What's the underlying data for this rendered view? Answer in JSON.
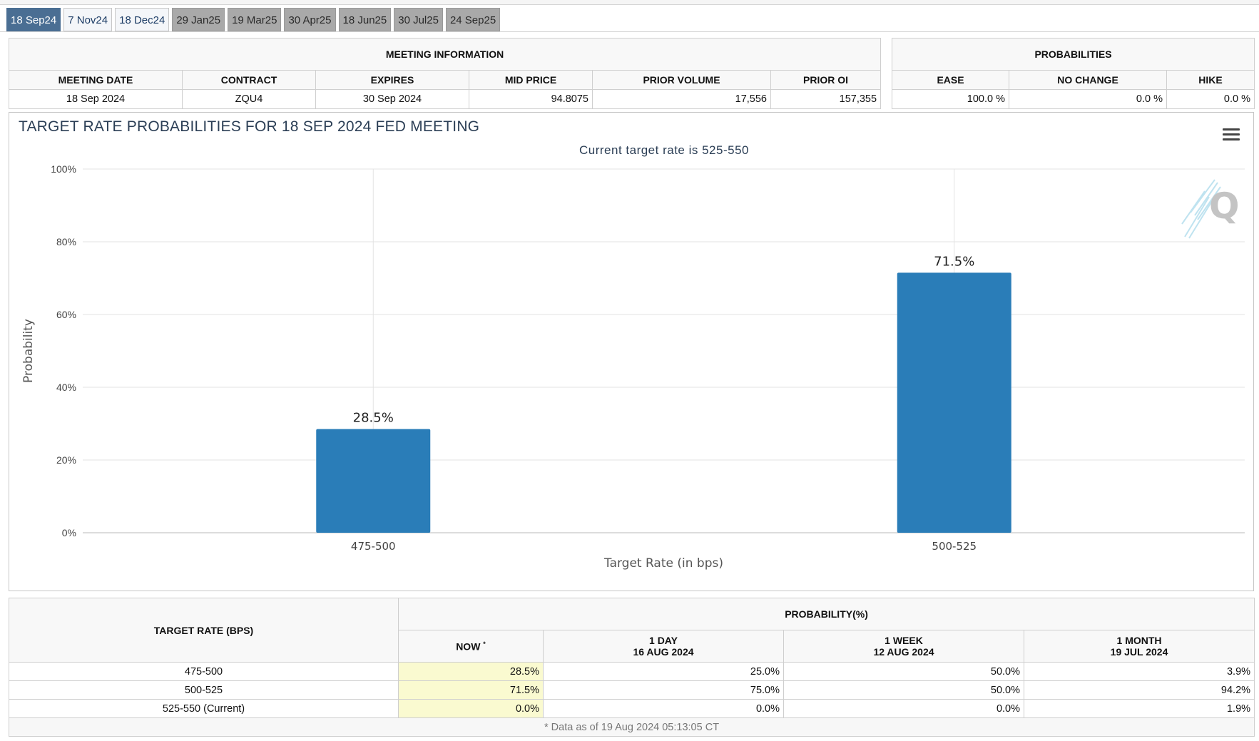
{
  "tabs": [
    {
      "label": "18 Sep24",
      "state": "active"
    },
    {
      "label": "7 Nov24",
      "state": "light"
    },
    {
      "label": "18 Dec24",
      "state": "light"
    },
    {
      "label": "29 Jan25",
      "state": "grey"
    },
    {
      "label": "19 Mar25",
      "state": "grey"
    },
    {
      "label": "30 Apr25",
      "state": "grey"
    },
    {
      "label": "18 Jun25",
      "state": "grey"
    },
    {
      "label": "30 Jul25",
      "state": "grey"
    },
    {
      "label": "24 Sep25",
      "state": "grey"
    }
  ],
  "meeting_info": {
    "title": "MEETING INFORMATION",
    "headers": [
      "MEETING DATE",
      "CONTRACT",
      "EXPIRES",
      "MID PRICE",
      "PRIOR VOLUME",
      "PRIOR OI"
    ],
    "values": [
      "18 Sep 2024",
      "ZQU4",
      "30 Sep 2024",
      "94.8075",
      "17,556",
      "157,355"
    ]
  },
  "probabilities": {
    "title": "PROBABILITIES",
    "headers": [
      "EASE",
      "NO CHANGE",
      "HIKE"
    ],
    "values": [
      "100.0 %",
      "0.0 %",
      "0.0 %"
    ]
  },
  "chart": {
    "title": "TARGET RATE PROBABILITIES FOR 18 SEP 2024 FED MEETING",
    "subtitle": "Current target rate is 525-550",
    "menu_icon": "hamburger-menu-icon",
    "bar_color": "#2a7db8"
  },
  "chart_data": {
    "type": "bar",
    "title": "TARGET RATE PROBABILITIES FOR 18 SEP 2024 FED MEETING",
    "subtitle": "Current target rate is 525-550",
    "categories": [
      "475-500",
      "500-525"
    ],
    "values": [
      28.5,
      71.5
    ],
    "data_labels": [
      "28.5%",
      "71.5%"
    ],
    "xlabel": "Target Rate (in bps)",
    "ylabel": "Probability",
    "ylim": [
      0,
      100
    ],
    "yticks": [
      "0%",
      "20%",
      "40%",
      "60%",
      "80%",
      "100%"
    ],
    "grid": true
  },
  "detail": {
    "col_target": "TARGET RATE (BPS)",
    "col_prob": "PROBABILITY(%)",
    "sub_headers": [
      {
        "line1": "NOW",
        "line2": ""
      },
      {
        "line1": "1 DAY",
        "line2": "16 AUG 2024"
      },
      {
        "line1": "1 WEEK",
        "line2": "12 AUG 2024"
      },
      {
        "line1": "1 MONTH",
        "line2": "19 JUL 2024"
      }
    ],
    "now_mark": "*",
    "rows": [
      {
        "rate": "475-500",
        "now": "28.5%",
        "d1": "25.0%",
        "w1": "50.0%",
        "m1": "3.9%"
      },
      {
        "rate": "500-525",
        "now": "71.5%",
        "d1": "75.0%",
        "w1": "50.0%",
        "m1": "94.2%"
      },
      {
        "rate": "525-550 (Current)",
        "now": "0.0%",
        "d1": "0.0%",
        "w1": "0.0%",
        "m1": "1.9%"
      }
    ],
    "footnote": "* Data as of 19 Aug 2024 05:13:05 CT"
  }
}
